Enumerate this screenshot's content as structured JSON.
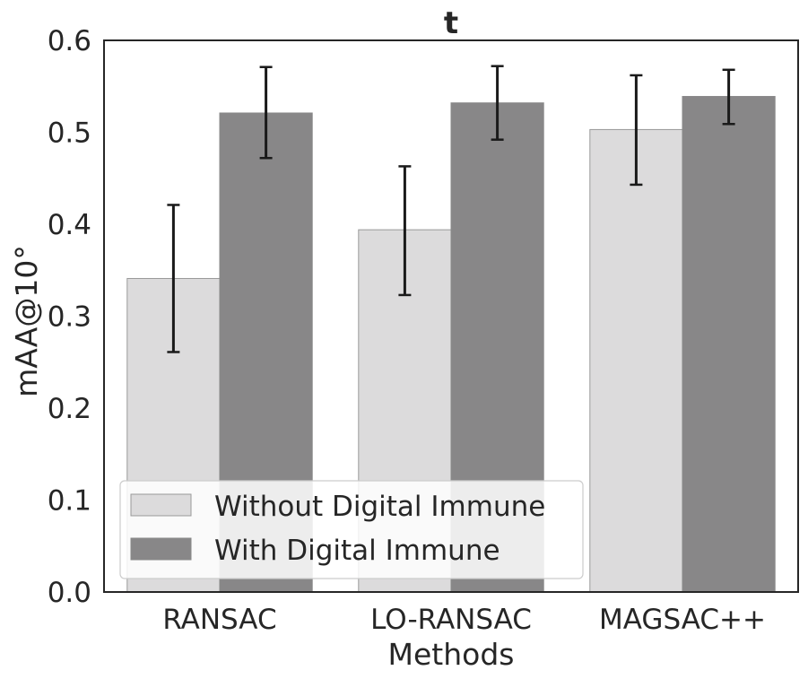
{
  "chart_data": {
    "type": "bar",
    "title": "t",
    "xlabel": "Methods",
    "ylabel": "mAA@10°",
    "categories": [
      "RANSAC",
      "LO-RANSAC",
      "MAGSAC++"
    ],
    "series": [
      {
        "name": "Without Digital Immune",
        "color": "#dcdbdc",
        "values": [
          0.341,
          0.394,
          0.503
        ],
        "error_low": [
          0.261,
          0.323,
          0.443
        ],
        "error_high": [
          0.421,
          0.463,
          0.562
        ]
      },
      {
        "name": "With Digital Immune",
        "color": "#888788",
        "values": [
          0.521,
          0.532,
          0.539
        ],
        "error_low": [
          0.472,
          0.492,
          0.509
        ],
        "error_high": [
          0.571,
          0.572,
          0.568
        ]
      }
    ],
    "ylim": [
      0,
      0.6
    ],
    "yticks": [
      "0.0",
      "0.1",
      "0.2",
      "0.3",
      "0.4",
      "0.5",
      "0.6"
    ],
    "grid": false,
    "legend_position": "lower-left"
  }
}
